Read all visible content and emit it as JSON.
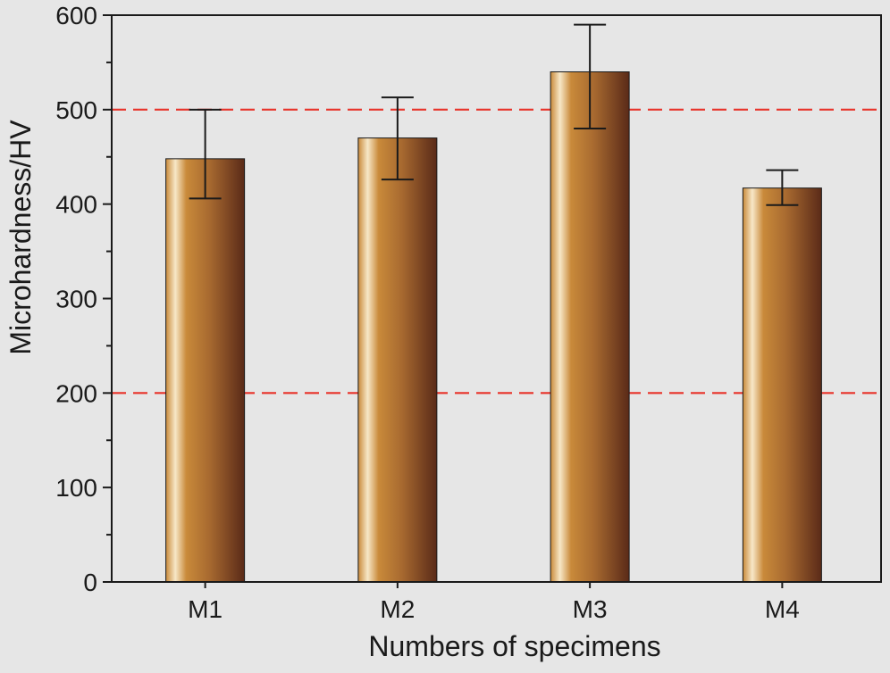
{
  "chart_data": {
    "type": "bar",
    "title": "",
    "xlabel": "Numbers of specimens",
    "ylabel": "Microhardness/HV",
    "categories": [
      "M1",
      "M2",
      "M3",
      "M4"
    ],
    "values": [
      448,
      470,
      540,
      417
    ],
    "error_low": [
      406,
      426,
      480,
      399
    ],
    "error_high": [
      500,
      513,
      590,
      436
    ],
    "ylim": [
      0,
      600
    ],
    "yticks": [
      0,
      100,
      200,
      300,
      400,
      500,
      600
    ],
    "reference_lines": [
      200,
      500
    ],
    "reference_line_color": "#e8332a",
    "bar_color_light": "#f7e7c7",
    "bar_color_mid": "#c98a3a",
    "bar_color_dark": "#5a2a18",
    "grid": false,
    "legend": "none"
  }
}
